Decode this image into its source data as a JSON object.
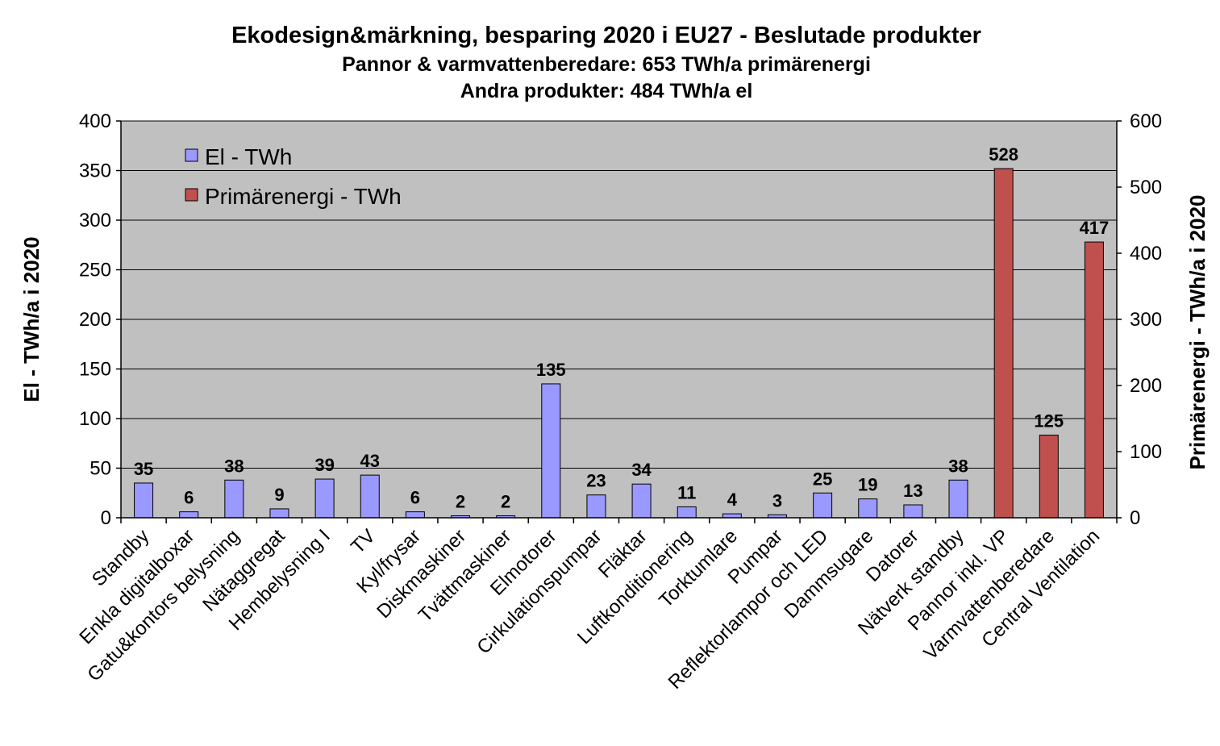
{
  "chart_data": {
    "type": "bar",
    "title": "Ekodesign&märkning,  besparing 2020 i EU27 - Beslutade produkter",
    "subtitle_lines": [
      "Pannor & varmvattenberedare: 653 TWh/a primärenergi",
      "Andra  produkter: 484 TWh/a el"
    ],
    "ylabel": "El - TWh/a i 2020",
    "ylabel_right": "Primärenergi - TWh/a i 2020",
    "ylim": [
      0,
      400
    ],
    "ylim_right": [
      0,
      600
    ],
    "yticks": [
      0,
      50,
      100,
      150,
      200,
      250,
      300,
      350,
      400
    ],
    "yticks_right": [
      0,
      100,
      200,
      300,
      400,
      500,
      600
    ],
    "grid": true,
    "legend_position": "top-left",
    "categories": [
      "Standby",
      "Enkla digitalboxar",
      "Gatu&kontors belysning",
      "Nätaggregat",
      "Hembelysning I",
      "TV",
      "Kyl/frysar",
      "Diskmaskiner",
      "Tvättmaskiner",
      "Elmotorer",
      "Cirkulationspumpar",
      "Fläktar",
      "Luftkonditionering",
      "Torktumlare",
      "Pumpar",
      "Reflektorlampor och LED",
      "Dammsugare",
      "Datorer",
      "Nätverk standby",
      "Pannor inkl. VP",
      "Varmvattenberedare",
      "Central Ventilation"
    ],
    "series": [
      {
        "name": "El - TWh",
        "axis": "left",
        "color": "#9999FF",
        "values": [
          35,
          6,
          38,
          9,
          39,
          43,
          6,
          2,
          2,
          135,
          23,
          34,
          11,
          4,
          3,
          25,
          19,
          13,
          38,
          null,
          null,
          null
        ],
        "labels": [
          "35",
          "6",
          "38",
          "9",
          "39",
          "43",
          "6",
          "2",
          "2",
          "135",
          "23",
          "34",
          "11",
          "4",
          "3",
          "25",
          "19",
          "13",
          "38",
          "",
          "",
          ""
        ]
      },
      {
        "name": "Primärenergi - TWh",
        "axis": "right",
        "color": "#C0504D",
        "values": [
          null,
          null,
          null,
          null,
          null,
          null,
          null,
          null,
          null,
          null,
          null,
          null,
          null,
          null,
          null,
          null,
          null,
          null,
          null,
          528,
          125,
          417
        ],
        "labels": [
          "",
          "",
          "",
          "",
          "",
          "",
          "",
          "",
          "",
          "",
          "",
          "",
          "",
          "",
          "",
          "",
          "",
          "",
          "",
          "528",
          "125",
          "417"
        ]
      }
    ],
    "colors": {
      "plot_background": "#C0C0C0",
      "grid": "#000000"
    }
  }
}
